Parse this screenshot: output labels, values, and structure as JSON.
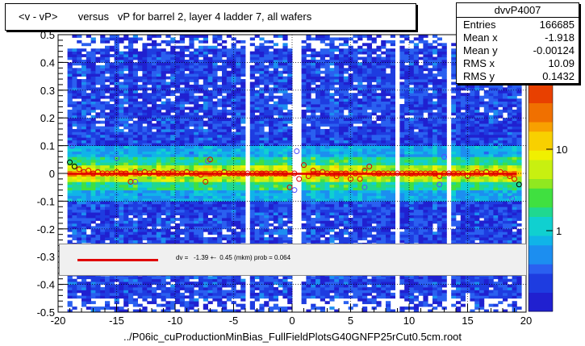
{
  "title": "<v - vP>       versus   vP for barrel 2, layer 4 ladder 7, all wafers",
  "stats": {
    "name": "dvvP4007",
    "rows": [
      {
        "label": "Entries",
        "value": "166685"
      },
      {
        "label": "Mean x",
        "value": "-1.918"
      },
      {
        "label": "Mean y",
        "value": "-0.00124"
      },
      {
        "label": "RMS x",
        "value": "10.09"
      },
      {
        "label": "RMS y",
        "value": "0.1432"
      }
    ]
  },
  "fit_text": "dv =   -1.39 +-  0.45 (mkm) prob = 0.064",
  "footer": "../P06ic_cuProductionMinBias_FullFieldPlotsG40GNFP25rCut0.5cm.root",
  "colors": {
    "fit_line": "#e00000",
    "profile_marker": "#e00000",
    "open_marker_blue": "#5050ff"
  },
  "chart_data": {
    "type": "heatmap",
    "title": "<v - vP>       versus   vP for barrel 2, layer 4 ladder 7, all wafers",
    "xlabel": "",
    "ylabel": "",
    "xlim": [
      -20,
      20
    ],
    "ylim": [
      -0.5,
      0.5
    ],
    "x_ticks": [
      "-20",
      "-15",
      "-10",
      "-5",
      "0",
      "5",
      "10",
      "15",
      "20"
    ],
    "y_ticks": [
      "-0.5",
      "-0.4",
      "-0.3",
      "-0.2",
      "-0.1",
      "0",
      "0.1",
      "0.2",
      "0.3",
      "0.4",
      "0.5"
    ],
    "z_scale": "log",
    "z_ticks": [
      "1",
      "10"
    ],
    "z_exponent_label": "2",
    "grid": true,
    "profile_points": [
      {
        "x": -19.0,
        "y": 0.04
      },
      {
        "x": -18.6,
        "y": 0.025
      },
      {
        "x": -18.2,
        "y": 0.015
      },
      {
        "x": -17.8,
        "y": 0.005
      },
      {
        "x": -17.4,
        "y": 0.01
      },
      {
        "x": -17.0,
        "y": 0.0
      },
      {
        "x": -16.6,
        "y": 0.005
      },
      {
        "x": -16.2,
        "y": 0.0
      },
      {
        "x": -15.8,
        "y": 0.0
      },
      {
        "x": -15.4,
        "y": 0.0
      },
      {
        "x": -15.0,
        "y": 0.005
      },
      {
        "x": -14.6,
        "y": 0.0
      },
      {
        "x": -14.2,
        "y": 0.0
      },
      {
        "x": -13.8,
        "y": -0.03
      },
      {
        "x": -13.4,
        "y": 0.005
      },
      {
        "x": -13.0,
        "y": 0.0
      },
      {
        "x": -12.6,
        "y": 0.005
      },
      {
        "x": -12.2,
        "y": 0.0
      },
      {
        "x": -11.8,
        "y": 0.005
      },
      {
        "x": -11.4,
        "y": 0.0
      },
      {
        "x": -11.0,
        "y": 0.0
      },
      {
        "x": -10.6,
        "y": 0.0
      },
      {
        "x": -10.2,
        "y": 0.005
      },
      {
        "x": -9.8,
        "y": 0.0
      },
      {
        "x": -9.4,
        "y": 0.0
      },
      {
        "x": -9.0,
        "y": 0.005
      },
      {
        "x": -8.6,
        "y": 0.0
      },
      {
        "x": -8.2,
        "y": 0.0
      },
      {
        "x": -7.8,
        "y": -0.005
      },
      {
        "x": -7.4,
        "y": -0.03
      },
      {
        "x": -7.0,
        "y": 0.05
      },
      {
        "x": -6.6,
        "y": 0.0
      },
      {
        "x": -6.2,
        "y": 0.0
      },
      {
        "x": -5.8,
        "y": 0.005
      },
      {
        "x": -5.4,
        "y": 0.0
      },
      {
        "x": -5.0,
        "y": 0.0
      },
      {
        "x": -4.6,
        "y": 0.0
      },
      {
        "x": -4.2,
        "y": 0.0
      },
      {
        "x": -3.8,
        "y": 0.0
      },
      {
        "x": -3.4,
        "y": 0.0
      },
      {
        "x": -3.0,
        "y": 0.0
      },
      {
        "x": -2.6,
        "y": 0.0
      },
      {
        "x": -2.2,
        "y": 0.0
      },
      {
        "x": -1.8,
        "y": 0.0
      },
      {
        "x": -1.4,
        "y": 0.0
      },
      {
        "x": -1.0,
        "y": 0.0
      },
      {
        "x": -0.6,
        "y": 0.0
      },
      {
        "x": -0.2,
        "y": -0.05
      },
      {
        "x": 0.2,
        "y": 0.0
      },
      {
        "x": 0.6,
        "y": -0.02
      },
      {
        "x": 1.0,
        "y": 0.03
      },
      {
        "x": 1.4,
        "y": -0.01
      },
      {
        "x": 1.8,
        "y": 0.01
      },
      {
        "x": 2.2,
        "y": 0.0
      },
      {
        "x": 2.6,
        "y": 0.005
      },
      {
        "x": 3.0,
        "y": 0.0
      },
      {
        "x": 3.4,
        "y": 0.0
      },
      {
        "x": 3.8,
        "y": -0.01
      },
      {
        "x": 4.2,
        "y": 0.0
      },
      {
        "x": 4.6,
        "y": 0.0
      },
      {
        "x": 5.0,
        "y": -0.02
      },
      {
        "x": 5.4,
        "y": 0.0
      },
      {
        "x": 5.8,
        "y": -0.02
      },
      {
        "x": 6.2,
        "y": 0.01
      },
      {
        "x": 6.6,
        "y": 0.025
      },
      {
        "x": 7.0,
        "y": 0.0
      },
      {
        "x": 7.4,
        "y": 0.0
      },
      {
        "x": 7.8,
        "y": 0.0
      },
      {
        "x": 8.2,
        "y": 0.0
      },
      {
        "x": 8.6,
        "y": 0.0
      },
      {
        "x": 9.0,
        "y": 0.0
      },
      {
        "x": 9.4,
        "y": 0.0
      },
      {
        "x": 9.8,
        "y": 0.0
      },
      {
        "x": 10.2,
        "y": 0.0
      },
      {
        "x": 10.6,
        "y": 0.0
      },
      {
        "x": 11.0,
        "y": 0.0
      },
      {
        "x": 11.4,
        "y": 0.0
      },
      {
        "x": 11.8,
        "y": 0.0
      },
      {
        "x": 12.2,
        "y": 0.0
      },
      {
        "x": 12.6,
        "y": -0.01
      },
      {
        "x": 13.0,
        "y": 0.0
      },
      {
        "x": 13.4,
        "y": 0.0
      },
      {
        "x": 13.8,
        "y": 0.0
      },
      {
        "x": 14.2,
        "y": 0.0
      },
      {
        "x": 14.6,
        "y": 0.0
      },
      {
        "x": 15.0,
        "y": -0.01
      },
      {
        "x": 15.4,
        "y": 0.0
      },
      {
        "x": 15.8,
        "y": 0.005
      },
      {
        "x": 16.2,
        "y": 0.0
      },
      {
        "x": 16.6,
        "y": 0.005
      },
      {
        "x": 17.0,
        "y": 0.0
      },
      {
        "x": 17.4,
        "y": 0.0
      },
      {
        "x": 17.8,
        "y": 0.005
      },
      {
        "x": 18.2,
        "y": 0.0
      },
      {
        "x": 18.6,
        "y": -0.01
      },
      {
        "x": 19.0,
        "y": -0.02
      },
      {
        "x": 19.4,
        "y": -0.04
      }
    ],
    "outlier_points": [
      {
        "x": -18.8,
        "y": 0.1
      },
      {
        "x": -15.0,
        "y": 0.055
      },
      {
        "x": -13.4,
        "y": -0.03
      },
      {
        "x": -7.2,
        "y": 0.045
      },
      {
        "x": 0.4,
        "y": 0.08
      },
      {
        "x": 0.2,
        "y": -0.06
      },
      {
        "x": 6.2,
        "y": -0.05
      },
      {
        "x": 12.6,
        "y": -0.04
      },
      {
        "x": 13.0,
        "y": 0.06
      },
      {
        "x": 18.8,
        "y": -0.09
      }
    ],
    "fit": {
      "p0_mkm": -1.39,
      "p0_err_mkm": 0.45,
      "prob": 0.064
    }
  }
}
